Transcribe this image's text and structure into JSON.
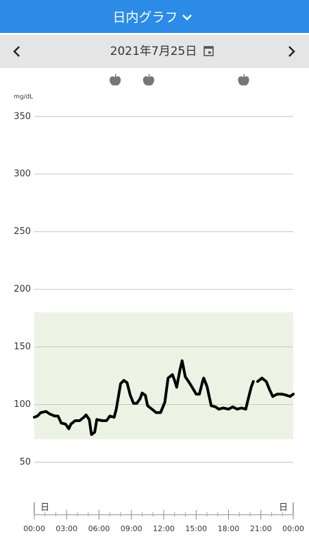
{
  "header": {
    "title": "日内グラフ"
  },
  "nav": {
    "date": "2021年7月25日"
  },
  "chart_data": {
    "type": "line",
    "y_label": "mg/dL",
    "color": "#000000",
    "target_range": [
      70,
      180
    ],
    "target_color": "#edf3e4",
    "meal_times": [
      7.5,
      10.6,
      19.4
    ],
    "period_labels": [
      "日",
      "日"
    ],
    "x": [
      0,
      0.3,
      0.6,
      1.1,
      1.4,
      1.9,
      2.2,
      2.5,
      2.9,
      3.2,
      3.4,
      3.8,
      4.2,
      4.6,
      4.8,
      5.1,
      5.3,
      5.6,
      5.8,
      6.3,
      6.7,
      7.0,
      7.4,
      7.6,
      8.0,
      8.3,
      8.6,
      8.9,
      9.2,
      9.5,
      9.8,
      10.0,
      10.3,
      10.5,
      10.9,
      11.3,
      11.7,
      12.1,
      12.4,
      12.8,
      13.0,
      13.2,
      13.5,
      13.7,
      14.0,
      14.3,
      14.7,
      15.0,
      15.3,
      15.6,
      15.7,
      16.0,
      16.4,
      16.8,
      17.1,
      17.5,
      18.0,
      18.4,
      18.8,
      19.2,
      19.6,
      19.8,
      20.1,
      20.3,
      20.5,
      20.7,
      21.1,
      21.5,
      21.8,
      22.1,
      22.5,
      23.0,
      23.4,
      23.7,
      24
    ],
    "values": [
      89,
      90,
      93,
      94,
      92,
      90,
      90,
      84,
      83,
      79,
      83,
      86,
      86,
      89,
      91,
      87,
      74,
      76,
      87,
      86,
      86,
      90,
      89,
      96,
      118,
      121,
      119,
      108,
      101,
      101,
      105,
      110,
      108,
      99,
      96,
      93,
      93,
      102,
      123,
      126,
      121,
      115,
      130,
      138,
      124,
      120,
      114,
      109,
      109,
      120,
      123,
      116,
      99,
      98,
      96,
      97,
      96,
      98,
      96,
      97,
      96,
      104,
      115,
      120,
      null,
      120,
      123,
      120,
      113,
      107,
      109,
      109,
      108,
      107,
      109
    ],
    "xlim": [
      0,
      24
    ],
    "xticks": [
      {
        "value": 0,
        "label": "00:00"
      },
      {
        "value": 3,
        "label": "03:00"
      },
      {
        "value": 6,
        "label": "06:00"
      },
      {
        "value": 9,
        "label": "09:00"
      },
      {
        "value": 12,
        "label": "12:00"
      },
      {
        "value": 15,
        "label": "15:00"
      },
      {
        "value": 18,
        "label": "18:00"
      },
      {
        "value": 21,
        "label": "21:00"
      },
      {
        "value": 24,
        "label": "00:00"
      }
    ],
    "xminorticks": [
      1,
      2,
      4,
      5,
      7,
      8,
      10,
      11,
      13,
      14,
      16,
      17,
      19,
      20,
      22,
      23
    ],
    "ylim": [
      5,
      360
    ],
    "yticks": [
      50,
      100,
      150,
      200,
      250,
      300,
      350
    ],
    "grid": true
  }
}
